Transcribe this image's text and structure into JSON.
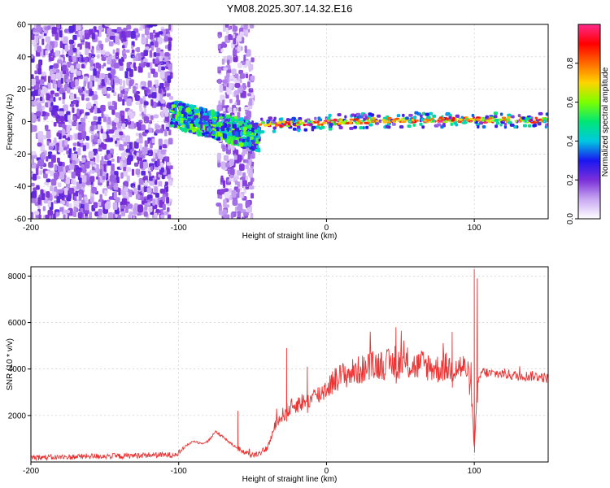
{
  "title": "YM08.2025.307.14.32.E16",
  "chart_data": [
    {
      "type": "heatmap",
      "xlabel": "Height of straight line (km)",
      "ylabel": "Frequency (Hz)",
      "xlim": [
        -200,
        150
      ],
      "ylim": [
        -60,
        60
      ],
      "x_ticks": [
        -200,
        -100,
        0,
        100
      ],
      "y_ticks": [
        -60,
        -40,
        -20,
        0,
        20,
        40,
        60
      ],
      "grid": true,
      "colorbar": {
        "label": "Normalized spectral amplitude",
        "range": [
          0,
          1
        ],
        "ticks": [
          "0.0",
          "0.2",
          "0.4",
          "0.6",
          "0.8"
        ],
        "colors": [
          "#ffffff",
          "#c9a8f2",
          "#7a2fd8",
          "#1a16f0",
          "#00c8e0",
          "#00e676",
          "#7cff00",
          "#ffd400",
          "#ff6a00",
          "#ff0000",
          "#ff2a8a"
        ]
      },
      "regions": [
        {
          "name": "noise",
          "x_range": [
            -200,
            -105
          ],
          "freq_range": [
            -60,
            60
          ],
          "amplitude": 0.12
        },
        {
          "name": "noise-patch",
          "x_range": [
            -73,
            -50
          ],
          "freq_range": [
            -60,
            60
          ],
          "amplitude": 0.1
        },
        {
          "name": "scattered-signal",
          "x_range": [
            -105,
            -45
          ],
          "center_freq": [
            5,
            -10
          ],
          "amplitude": 0.35
        },
        {
          "name": "narrow-band-signal",
          "x_range": [
            -45,
            150
          ],
          "center_freq": [
            -2,
            1
          ],
          "amplitude": 0.95
        }
      ]
    },
    {
      "type": "line",
      "xlabel": "Height of straight line (km)",
      "ylabel": "SNR (10 * v/v)",
      "xlim": [
        -200,
        150
      ],
      "ylim": [
        0,
        8400
      ],
      "x_ticks": [
        -200,
        -100,
        0,
        100
      ],
      "y_ticks": [
        2000,
        4000,
        6000,
        8000
      ],
      "color": "#ee3333",
      "grid": true,
      "series": [
        {
          "name": "SNR",
          "x": [
            -200,
            -180,
            -160,
            -140,
            -120,
            -105,
            -100,
            -95,
            -90,
            -85,
            -80,
            -75,
            -70,
            -65,
            -60,
            -55,
            -50,
            -45,
            -40,
            -35,
            -30,
            -25,
            -20,
            -15,
            -10,
            -5,
            0,
            5,
            10,
            15,
            20,
            25,
            30,
            35,
            40,
            45,
            50,
            55,
            60,
            65,
            70,
            75,
            80,
            85,
            90,
            95,
            98,
            100,
            102,
            105,
            110,
            120,
            130,
            140,
            150
          ],
          "y": [
            200,
            200,
            250,
            250,
            300,
            300,
            400,
            700,
            900,
            800,
            900,
            1300,
            1100,
            800,
            600,
            400,
            300,
            400,
            600,
            1500,
            2000,
            2300,
            2500,
            2600,
            2700,
            2900,
            3200,
            3500,
            3700,
            3800,
            3900,
            4000,
            4100,
            4200,
            4200,
            4200,
            4250,
            4200,
            4100,
            4200,
            4100,
            4000,
            4100,
            4000,
            4100,
            4000,
            3000,
            500,
            3200,
            3900,
            3800,
            3800,
            3700,
            3700,
            3600
          ],
          "spikes": [
            {
              "x": -60,
              "y": 2200
            },
            {
              "x": -27,
              "y": 4900
            },
            {
              "x": -13,
              "y": 4100
            },
            {
              "x": 47,
              "y": 5800
            },
            {
              "x": 85,
              "y": 5600
            },
            {
              "x": 100,
              "y": 8300
            },
            {
              "x": 102,
              "y": 7900
            }
          ]
        }
      ]
    }
  ]
}
